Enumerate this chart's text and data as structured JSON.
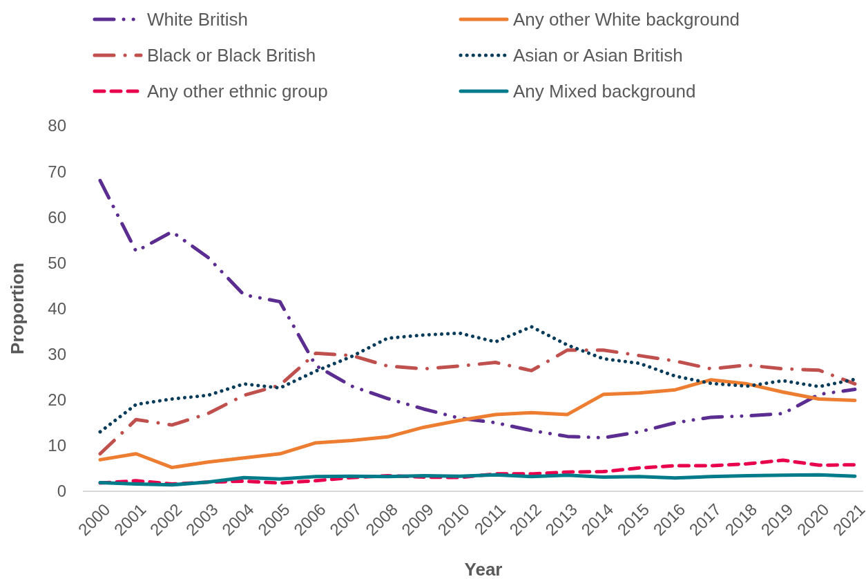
{
  "chart_data": {
    "type": "line",
    "xlabel": "Year",
    "ylabel": "Proportion",
    "categories": [
      "2000",
      "2001",
      "2002",
      "2003",
      "2004",
      "2005",
      "2006",
      "2007",
      "2008",
      "2009",
      "2010",
      "2011",
      "2012",
      "2013",
      "2014",
      "2015",
      "2016",
      "2017",
      "2018",
      "2019",
      "2020",
      "2021"
    ],
    "ylim": [
      0,
      80
    ],
    "yticks": [
      0,
      10,
      20,
      30,
      40,
      50,
      60,
      70,
      80
    ],
    "grid": false,
    "legend": "top",
    "marker": "none",
    "series": [
      {
        "name": "White British",
        "color": "#5c2d91",
        "line_style": "dashdotdot",
        "values": [
          68,
          52.5,
          56.8,
          51.2,
          43,
          41.5,
          27.5,
          23,
          20.3,
          18,
          16,
          15,
          13.3,
          12,
          11.7,
          13,
          15,
          16.2,
          16.5,
          17,
          21.2,
          22.3
        ]
      },
      {
        "name": "Any other White background",
        "color": "#ed7d31",
        "line_style": "solid",
        "values": [
          6.9,
          8.2,
          5.2,
          6.4,
          7.3,
          8.2,
          10.6,
          11.1,
          11.9,
          14,
          15.5,
          16.8,
          17.2,
          16.8,
          21.2,
          21.5,
          22.2,
          24.4,
          23.5,
          21.7,
          20.2,
          19.9
        ]
      },
      {
        "name": "Black or Black British",
        "color": "#c0504d",
        "line_style": "dashdot",
        "values": [
          8.2,
          15.7,
          14.5,
          17,
          21,
          23.2,
          30.2,
          29.7,
          27.4,
          26.8,
          27.4,
          28.2,
          26.4,
          30.9,
          30.9,
          29.7,
          28.5,
          26.8,
          27.6,
          26.8,
          26.5,
          23.5
        ]
      },
      {
        "name": "Asian or Asian British",
        "color": "#073b5a",
        "line_style": "dotted",
        "values": [
          13,
          19,
          20.2,
          21,
          23.5,
          22.6,
          26.3,
          29.5,
          33.5,
          34.2,
          34.6,
          32.7,
          36,
          32,
          29,
          28,
          25.2,
          23.6,
          23,
          24.2,
          22.9,
          24.5
        ]
      },
      {
        "name": "Any other ethnic group",
        "color": "#e8004c",
        "line_style": "dashed",
        "values": [
          1.8,
          2.3,
          1.6,
          2,
          2.2,
          1.8,
          2.3,
          3,
          3.4,
          3.1,
          3,
          3.8,
          3.8,
          4.2,
          4.3,
          5.1,
          5.6,
          5.6,
          6,
          6.8,
          5.7,
          5.8
        ]
      },
      {
        "name": "Any Mixed background",
        "color": "#007b8a",
        "line_style": "solid",
        "values": [
          1.9,
          1.6,
          1.4,
          2,
          3,
          2.7,
          3.2,
          3.3,
          3.2,
          3.4,
          3.3,
          3.6,
          3.2,
          3.5,
          3.1,
          3.2,
          2.9,
          3.2,
          3.4,
          3.5,
          3.6,
          3.3
        ]
      }
    ]
  }
}
